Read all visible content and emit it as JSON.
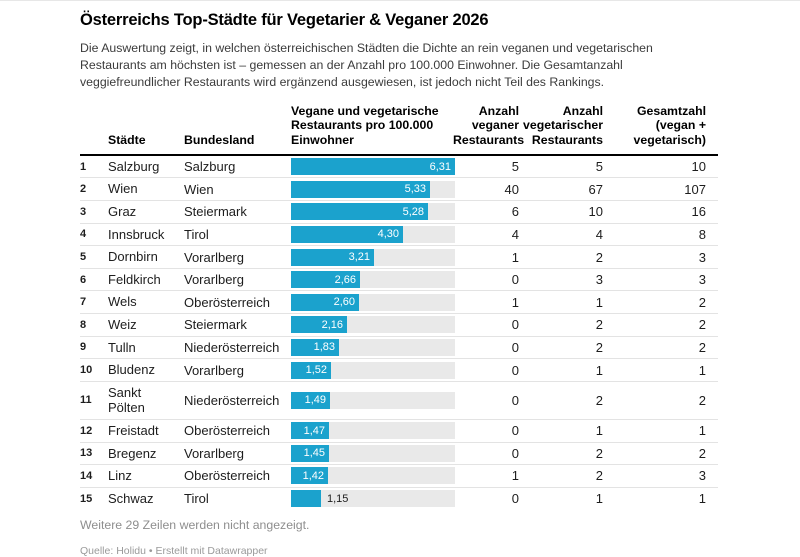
{
  "meta": {
    "accent_color": "#1ba2cd",
    "track_color": "#e9e9e9"
  },
  "header": {
    "title": "Österreichs Top-Städte für Vegetarier & Veganer 2026",
    "description": "Die Auswertung zeigt, in welchen österreichischen Städten die Dichte an rein veganen und vegetarischen Restaurants am höchsten ist – gemessen an der Anzahl pro 100.000 Einwohner. Die Gesamtanzahl veggiefreundlicher Restaurants wird ergänzend ausgewiesen, ist jedoch nicht Teil des Rankings."
  },
  "table": {
    "columns": {
      "city": "Städte",
      "state": "Bundesland",
      "bar": "Vegane und vegetarische\nRestaurants pro 100.000\nEinwohner",
      "vegan": "Anzahl\nveganer\nRestaurants",
      "vegetarian": "Anzahl\nvegetarischer\nRestaurants",
      "total": "Gesamtzahl\n(vegan +\nvegetarisch)"
    }
  },
  "chart_data": {
    "type": "table",
    "title": "Österreichs Top-Städte für Vegetarier & Veganer 2026",
    "bar_column_label": "Vegane und vegetarische Restaurants pro 100.000 Einwohner",
    "value_column_max": 6.31,
    "rows": [
      {
        "rank": "1",
        "city": "Salzburg",
        "state": "Salzburg",
        "value": 6.31,
        "value_label": "6,31",
        "vegan": "5",
        "vegetarian": "5",
        "total": "10"
      },
      {
        "rank": "2",
        "city": "Wien",
        "state": "Wien",
        "value": 5.33,
        "value_label": "5,33",
        "vegan": "40",
        "vegetarian": "67",
        "total": "107"
      },
      {
        "rank": "3",
        "city": "Graz",
        "state": "Steiermark",
        "value": 5.28,
        "value_label": "5,28",
        "vegan": "6",
        "vegetarian": "10",
        "total": "16"
      },
      {
        "rank": "4",
        "city": "Innsbruck",
        "state": "Tirol",
        "value": 4.3,
        "value_label": "4,30",
        "vegan": "4",
        "vegetarian": "4",
        "total": "8"
      },
      {
        "rank": "5",
        "city": "Dornbirn",
        "state": "Vorarlberg",
        "value": 3.21,
        "value_label": "3,21",
        "vegan": "1",
        "vegetarian": "2",
        "total": "3"
      },
      {
        "rank": "6",
        "city": "Feldkirch",
        "state": "Vorarlberg",
        "value": 2.66,
        "value_label": "2,66",
        "vegan": "0",
        "vegetarian": "3",
        "total": "3"
      },
      {
        "rank": "7",
        "city": "Wels",
        "state": "Oberösterreich",
        "value": 2.6,
        "value_label": "2,60",
        "vegan": "1",
        "vegetarian": "1",
        "total": "2"
      },
      {
        "rank": "8",
        "city": "Weiz",
        "state": "Steiermark",
        "value": 2.16,
        "value_label": "2,16",
        "vegan": "0",
        "vegetarian": "2",
        "total": "2"
      },
      {
        "rank": "9",
        "city": "Tulln",
        "state": "Niederösterreich",
        "value": 1.83,
        "value_label": "1,83",
        "vegan": "0",
        "vegetarian": "2",
        "total": "2"
      },
      {
        "rank": "10",
        "city": "Bludenz",
        "state": "Vorarlberg",
        "value": 1.52,
        "value_label": "1,52",
        "vegan": "0",
        "vegetarian": "1",
        "total": "1"
      },
      {
        "rank": "11",
        "city": "Sankt Pölten",
        "state": "Niederösterreich",
        "value": 1.49,
        "value_label": "1,49",
        "vegan": "0",
        "vegetarian": "2",
        "total": "2"
      },
      {
        "rank": "12",
        "city": "Freistadt",
        "state": "Oberösterreich",
        "value": 1.47,
        "value_label": "1,47",
        "vegan": "0",
        "vegetarian": "1",
        "total": "1"
      },
      {
        "rank": "13",
        "city": "Bregenz",
        "state": "Vorarlberg",
        "value": 1.45,
        "value_label": "1,45",
        "vegan": "0",
        "vegetarian": "2",
        "total": "2"
      },
      {
        "rank": "14",
        "city": "Linz",
        "state": "Oberösterreich",
        "value": 1.42,
        "value_label": "1,42",
        "vegan": "1",
        "vegetarian": "2",
        "total": "3"
      },
      {
        "rank": "15",
        "city": "Schwaz",
        "state": "Tirol",
        "value": 1.15,
        "value_label": "1,15",
        "vegan": "0",
        "vegetarian": "1",
        "total": "1"
      }
    ]
  },
  "footer": {
    "note": "Weitere 29 Zeilen werden nicht angezeigt.",
    "source_label": "Quelle:",
    "source_name": "Holidu",
    "separator": "•",
    "attribution": "Erstellt mit Datawrapper"
  }
}
